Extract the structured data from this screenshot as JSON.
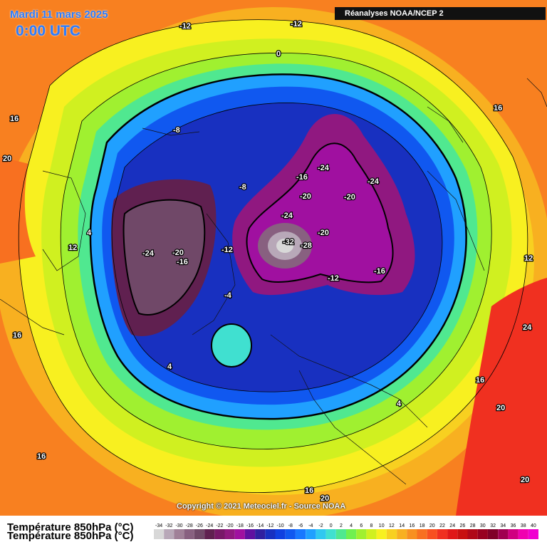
{
  "header": {
    "date": "Mardi 11 mars 2025",
    "time": "0:00 UTC",
    "source": "Réanalyses NOAA/NCEP 2"
  },
  "footer": {
    "title": "Température 850hPa (°C)",
    "copyright": "Copyright © 2021 Meteociel.fr - Source NOAA"
  },
  "legend": {
    "ticks": [
      "-34",
      "-32",
      "-30",
      "-28",
      "-26",
      "-24",
      "-22",
      "-20",
      "-18",
      "-16",
      "-14",
      "-12",
      "-10",
      "-8",
      "-6",
      "-4",
      "-2",
      "0",
      "2",
      "4",
      "6",
      "8",
      "10",
      "12",
      "14",
      "16",
      "18",
      "20",
      "22",
      "24",
      "26",
      "28",
      "30",
      "32",
      "34",
      "36",
      "38",
      "40"
    ],
    "colors": [
      "#d8d8d8",
      "#b8a8b8",
      "#a08098",
      "#886080",
      "#704868",
      "#602050",
      "#781868",
      "#901880",
      "#a010a0",
      "#6010a0",
      "#3020a0",
      "#1830c0",
      "#1040e0",
      "#1058f0",
      "#1878ff",
      "#20a0ff",
      "#30c8f0",
      "#40e0d0",
      "#50e890",
      "#70f050",
      "#a0f030",
      "#d0f020",
      "#f8f020",
      "#f8d020",
      "#f8b020",
      "#f89020",
      "#f87020",
      "#f85020",
      "#f03020",
      "#e01818",
      "#c81010",
      "#b00818",
      "#980020",
      "#800028",
      "#a00050",
      "#d00080",
      "#f000b0",
      "#f000d0"
    ]
  },
  "map_labels": [
    {
      "text": "-12"
    },
    {
      "text": "-12"
    },
    {
      "text": "0"
    },
    {
      "text": "16"
    },
    {
      "text": "20"
    },
    {
      "text": "-8"
    },
    {
      "text": "-8"
    },
    {
      "text": "-24"
    },
    {
      "text": "-20"
    },
    {
      "text": "-16"
    },
    {
      "text": "-12"
    },
    {
      "text": "-4"
    },
    {
      "text": "4"
    },
    {
      "text": "12"
    },
    {
      "text": "16"
    },
    {
      "text": "-24"
    },
    {
      "text": "-16"
    },
    {
      "text": "-20"
    },
    {
      "text": "-24"
    },
    {
      "text": "-20"
    },
    {
      "text": "-24"
    },
    {
      "text": "-20"
    },
    {
      "text": "-32"
    },
    {
      "text": "-28"
    },
    {
      "text": "-16"
    },
    {
      "text": "-12"
    },
    {
      "text": "16"
    },
    {
      "text": "12"
    },
    {
      "text": "24"
    },
    {
      "text": "16"
    },
    {
      "text": "20"
    },
    {
      "text": "4"
    },
    {
      "text": "4"
    },
    {
      "text": "16"
    },
    {
      "text": "16"
    },
    {
      "text": "20"
    },
    {
      "text": "20"
    }
  ]
}
